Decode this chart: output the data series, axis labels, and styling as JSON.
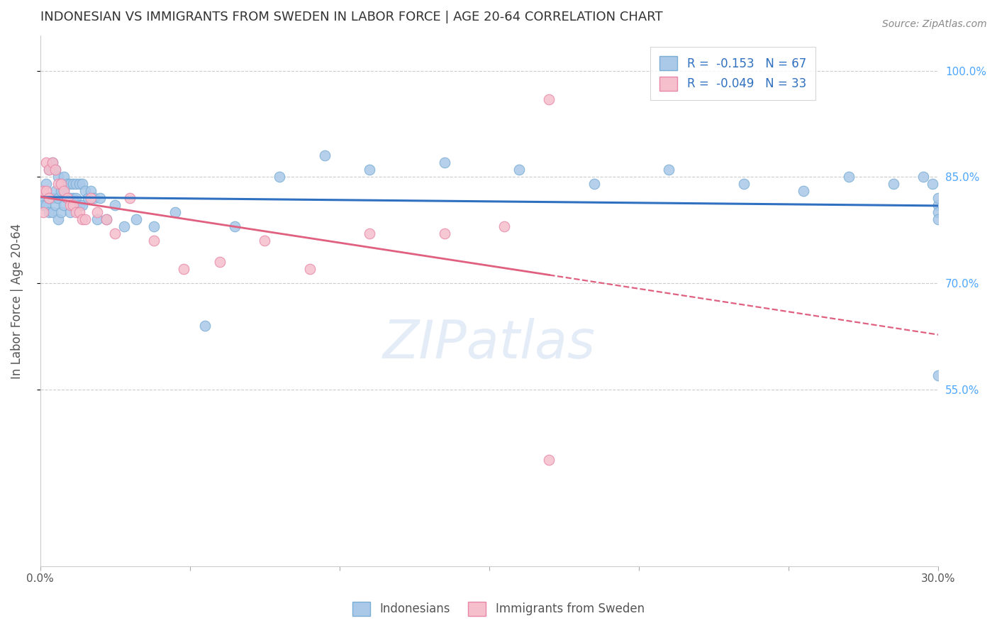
{
  "title": "INDONESIAN VS IMMIGRANTS FROM SWEDEN IN LABOR FORCE | AGE 20-64 CORRELATION CHART",
  "source": "Source: ZipAtlas.com",
  "ylabel": "In Labor Force | Age 20-64",
  "xlim": [
    0.0,
    0.3
  ],
  "ylim": [
    0.3,
    1.05
  ],
  "xticks": [
    0.0,
    0.05,
    0.1,
    0.15,
    0.2,
    0.25,
    0.3
  ],
  "xticklabels": [
    "0.0%",
    "",
    "",
    "",
    "",
    "",
    "30.0%"
  ],
  "yticks": [
    0.55,
    0.7,
    0.85,
    1.0
  ],
  "yticklabels": [
    "55.0%",
    "70.0%",
    "85.0%",
    "100.0%"
  ],
  "legend_blue_r": "-0.153",
  "legend_blue_n": "67",
  "legend_pink_r": "-0.049",
  "legend_pink_n": "33",
  "blue_color": "#aac8e8",
  "blue_edge": "#7aaed4",
  "pink_color": "#f5bfcc",
  "pink_edge": "#e888a8",
  "trend_blue_color": "#3070c0",
  "trend_pink_color": "#e06080",
  "background_color": "#ffffff",
  "grid_color": "#cccccc",
  "title_color": "#333333",
  "axis_label_color": "#555555",
  "right_tick_color": "#4da6ff",
  "indonesians_x": [
    0.001,
    0.001,
    0.002,
    0.002,
    0.003,
    0.003,
    0.003,
    0.004,
    0.004,
    0.004,
    0.005,
    0.005,
    0.005,
    0.006,
    0.006,
    0.006,
    0.007,
    0.007,
    0.007,
    0.008,
    0.008,
    0.008,
    0.009,
    0.009,
    0.01,
    0.01,
    0.01,
    0.011,
    0.011,
    0.012,
    0.012,
    0.013,
    0.013,
    0.014,
    0.014,
    0.015,
    0.016,
    0.017,
    0.018,
    0.019,
    0.02,
    0.022,
    0.025,
    0.028,
    0.032,
    0.038,
    0.045,
    0.055,
    0.065,
    0.08,
    0.095,
    0.11,
    0.135,
    0.16,
    0.185,
    0.21,
    0.235,
    0.255,
    0.27,
    0.285,
    0.295,
    0.298,
    0.3,
    0.3,
    0.3,
    0.3,
    0.3
  ],
  "indonesians_y": [
    0.82,
    0.81,
    0.84,
    0.81,
    0.86,
    0.82,
    0.8,
    0.87,
    0.82,
    0.8,
    0.86,
    0.83,
    0.81,
    0.85,
    0.82,
    0.79,
    0.84,
    0.83,
    0.8,
    0.85,
    0.83,
    0.81,
    0.84,
    0.82,
    0.84,
    0.82,
    0.8,
    0.84,
    0.82,
    0.84,
    0.82,
    0.84,
    0.81,
    0.84,
    0.81,
    0.83,
    0.82,
    0.83,
    0.82,
    0.79,
    0.82,
    0.79,
    0.81,
    0.78,
    0.79,
    0.78,
    0.8,
    0.64,
    0.78,
    0.85,
    0.88,
    0.86,
    0.87,
    0.86,
    0.84,
    0.86,
    0.84,
    0.83,
    0.85,
    0.84,
    0.85,
    0.84,
    0.81,
    0.82,
    0.8,
    0.79,
    0.57
  ],
  "sweden_x": [
    0.001,
    0.001,
    0.002,
    0.002,
    0.003,
    0.003,
    0.004,
    0.005,
    0.006,
    0.007,
    0.008,
    0.009,
    0.01,
    0.011,
    0.012,
    0.013,
    0.014,
    0.015,
    0.017,
    0.019,
    0.022,
    0.025,
    0.03,
    0.038,
    0.048,
    0.06,
    0.075,
    0.09,
    0.11,
    0.135,
    0.155,
    0.17,
    0.17
  ],
  "sweden_y": [
    0.83,
    0.8,
    0.87,
    0.83,
    0.86,
    0.82,
    0.87,
    0.86,
    0.84,
    0.84,
    0.83,
    0.82,
    0.81,
    0.81,
    0.8,
    0.8,
    0.79,
    0.79,
    0.82,
    0.8,
    0.79,
    0.77,
    0.82,
    0.76,
    0.72,
    0.73,
    0.76,
    0.72,
    0.77,
    0.77,
    0.78,
    0.45,
    0.96
  ]
}
